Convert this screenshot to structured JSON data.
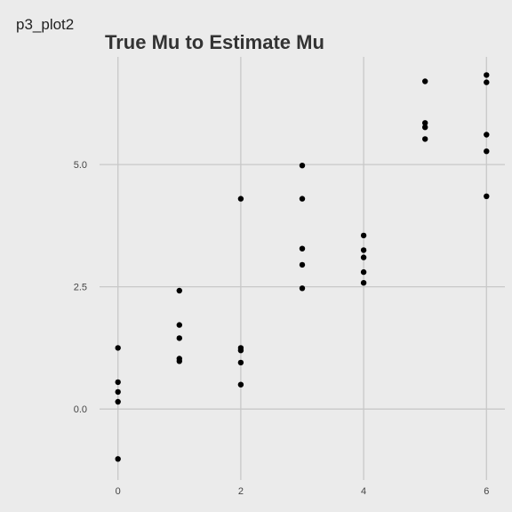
{
  "figure": {
    "label": "p3_plot2"
  },
  "chart_data": {
    "type": "scatter",
    "title": "True Mu to Estimate Mu",
    "xlabel": "",
    "ylabel": "",
    "xlim": [
      -0.3,
      6.3
    ],
    "ylim": [
      -1.45,
      7.2
    ],
    "x_ticks": [
      0,
      2,
      4,
      6
    ],
    "x_tick_labels": [
      "0",
      "2",
      "4",
      "6"
    ],
    "y_ticks": [
      0,
      2.5,
      5
    ],
    "y_tick_labels": [
      "0.0",
      "2.5",
      "5.0"
    ],
    "grid": true,
    "points": [
      {
        "x": 0,
        "y": 1.25
      },
      {
        "x": 0,
        "y": 0.55
      },
      {
        "x": 0,
        "y": 0.35
      },
      {
        "x": 0,
        "y": 0.15
      },
      {
        "x": 0,
        "y": -1.02
      },
      {
        "x": 1,
        "y": 2.42
      },
      {
        "x": 1,
        "y": 1.72
      },
      {
        "x": 1,
        "y": 1.45
      },
      {
        "x": 1,
        "y": 1.03
      },
      {
        "x": 1,
        "y": 0.98
      },
      {
        "x": 2,
        "y": 4.3
      },
      {
        "x": 2,
        "y": 1.25
      },
      {
        "x": 2,
        "y": 1.2
      },
      {
        "x": 2,
        "y": 0.95
      },
      {
        "x": 2,
        "y": 0.5
      },
      {
        "x": 3,
        "y": 4.98
      },
      {
        "x": 3,
        "y": 4.3
      },
      {
        "x": 3,
        "y": 3.28
      },
      {
        "x": 3,
        "y": 2.95
      },
      {
        "x": 3,
        "y": 2.47
      },
      {
        "x": 4,
        "y": 3.55
      },
      {
        "x": 4,
        "y": 3.25
      },
      {
        "x": 4,
        "y": 3.1
      },
      {
        "x": 4,
        "y": 2.8
      },
      {
        "x": 4,
        "y": 2.58
      },
      {
        "x": 5,
        "y": 6.7
      },
      {
        "x": 5,
        "y": 5.85
      },
      {
        "x": 5,
        "y": 5.76
      },
      {
        "x": 5,
        "y": 5.52
      },
      {
        "x": 6,
        "y": 6.83
      },
      {
        "x": 6,
        "y": 6.68
      },
      {
        "x": 6,
        "y": 5.61
      },
      {
        "x": 6,
        "y": 5.27
      },
      {
        "x": 6,
        "y": 4.35
      }
    ],
    "colors": {
      "panel_background": "#ebebeb",
      "grid": "#c8c8c8",
      "point": "#000000",
      "title": "#333333",
      "tick_label": "#444444"
    }
  }
}
